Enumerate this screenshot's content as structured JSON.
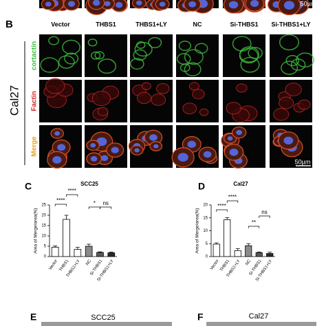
{
  "top_panel": {
    "scale_bar": "50µm"
  },
  "panel_b": {
    "label": "B",
    "cell_line": "Cal27",
    "columns": [
      "Vector",
      "THBS1",
      "THBS1+LY",
      "NC",
      "Si-THBS1",
      "Si-THBS1+LY"
    ],
    "rows": [
      "cortactin",
      "Factin",
      "Merge"
    ],
    "scale_bar": "50µm"
  },
  "chart_data": [
    {
      "type": "bar",
      "label": "C",
      "title": "SCC25",
      "y_label": "Area of Merge/area(%)",
      "categories": [
        "Vector",
        "THBS1",
        "THBS1+LY",
        "NC",
        "Si-THBS1",
        "Si-THBS1+LY"
      ],
      "values": [
        4.5,
        18,
        3.5,
        5,
        2,
        1.8
      ],
      "errors": [
        0.6,
        2,
        1,
        1,
        0.3,
        0.3
      ],
      "colors": [
        "#ffffff",
        "#ffffff",
        "#ffffff",
        "#8a8a8a",
        "#5a5a5a",
        "#2a2a2a"
      ],
      "ylim": [
        0,
        25
      ],
      "yticks": [
        0,
        5,
        10,
        15,
        20,
        25
      ],
      "annotations": [
        "****",
        "****",
        "*",
        "ns"
      ]
    },
    {
      "type": "bar",
      "label": "D",
      "title": "Cal27",
      "y_label": "Area of Merge/area(%)",
      "categories": [
        "Vector",
        "THBS1",
        "THBS1+LY",
        "NC",
        "Si-THBS1",
        "Si-THBS1+LY"
      ],
      "values": [
        4.8,
        14.3,
        2.3,
        4.2,
        1.5,
        1.2
      ],
      "errors": [
        0.5,
        0.8,
        0.8,
        0.8,
        0.3,
        0.5
      ],
      "colors": [
        "#ffffff",
        "#ffffff",
        "#ffffff",
        "#8a8a8a",
        "#5a5a5a",
        "#2a2a2a"
      ],
      "ylim": [
        0,
        20
      ],
      "yticks": [
        0,
        5,
        10,
        15,
        20
      ],
      "annotations": [
        "****",
        "****",
        "**",
        "ns"
      ]
    }
  ],
  "panel_e": {
    "label": "E",
    "title": "SCC25"
  },
  "panel_f": {
    "label": "F",
    "title": "Cal27"
  }
}
